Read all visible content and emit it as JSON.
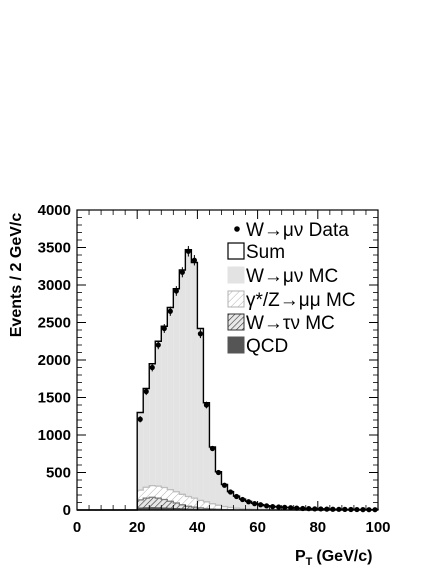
{
  "chart_data": {
    "type": "bar",
    "xlabel": "P",
    "xlabel_sub": "T",
    "xlabel_units": "(GeV/c)",
    "ylabel": "Events / 2 GeV/c",
    "xlim": [
      0,
      100
    ],
    "ylim": [
      0,
      4000
    ],
    "xticks": [
      0,
      20,
      40,
      60,
      80,
      100
    ],
    "yticks": [
      0,
      500,
      1000,
      1500,
      2000,
      2500,
      3000,
      3500,
      4000
    ],
    "bin_width": 2,
    "bin_edges_start": 20,
    "legend_placement": "top-right",
    "legend": [
      {
        "key": "data",
        "label": "W→μν Data"
      },
      {
        "key": "sum",
        "label": "Sum"
      },
      {
        "key": "wmunu",
        "label": "W→μν MC"
      },
      {
        "key": "zmumu",
        "label": "γ*/Z→μμ MC"
      },
      {
        "key": "wtaunu",
        "label": "W→τν MC"
      },
      {
        "key": "qcd",
        "label": "QCD"
      }
    ],
    "colors": {
      "wmunu": "#e3e3e3",
      "zmumu": "#bdbdbd",
      "wtaunu": "#7a7a7a",
      "qcd": "#555555",
      "sum": "#000000",
      "data": "#000000"
    },
    "bins": [
      20,
      22,
      24,
      26,
      28,
      30,
      32,
      34,
      36,
      38,
      40,
      42,
      44,
      46,
      48,
      50,
      52,
      54,
      56,
      58,
      60,
      62,
      64,
      66,
      68,
      70,
      72,
      74,
      76,
      78,
      80,
      82,
      84,
      86,
      88,
      90,
      92,
      94,
      96,
      98
    ],
    "series": [
      {
        "key": "data",
        "values": [
          1210,
          1580,
          1900,
          2200,
          2420,
          2650,
          2920,
          3170,
          3450,
          3330,
          2350,
          1400,
          820,
          500,
          330,
          240,
          180,
          140,
          110,
          85,
          70,
          55,
          45,
          40,
          35,
          30,
          25,
          20,
          18,
          15,
          14,
          12,
          10,
          9,
          8,
          7,
          6,
          5,
          4,
          4
        ]
      },
      {
        "key": "sum",
        "values": [
          1300,
          1620,
          1950,
          2250,
          2450,
          2700,
          2950,
          3200,
          3470,
          3300,
          2420,
          1430,
          840,
          510,
          340,
          245,
          185,
          145,
          115,
          88,
          72,
          57,
          47,
          41,
          36,
          31,
          26,
          21,
          19,
          16,
          15,
          12,
          10,
          9,
          8,
          7,
          6,
          5,
          4,
          4
        ]
      },
      {
        "key": "zmumu",
        "values": [
          130,
          145,
          155,
          160,
          160,
          155,
          150,
          140,
          130,
          120,
          100,
          90,
          70,
          55,
          40,
          30,
          22,
          16,
          12,
          8,
          6,
          4,
          3,
          2,
          2,
          2,
          1,
          1,
          1,
          1,
          1,
          1,
          1,
          1,
          0,
          0,
          0,
          0,
          0,
          0
        ]
      },
      {
        "key": "wtaunu",
        "values": [
          110,
          130,
          140,
          130,
          115,
          95,
          75,
          55,
          40,
          30,
          22,
          15,
          10,
          7,
          5,
          3,
          2,
          1,
          1,
          1,
          0,
          0,
          0,
          0,
          0,
          0,
          0,
          0,
          0,
          0,
          0,
          0,
          0,
          0,
          0,
          0,
          0,
          0,
          0,
          0
        ]
      },
      {
        "key": "qcd",
        "values": [
          25,
          28,
          30,
          28,
          25,
          22,
          18,
          14,
          10,
          8,
          6,
          4,
          3,
          2,
          1,
          1,
          0,
          0,
          0,
          0,
          0,
          0,
          0,
          0,
          0,
          0,
          0,
          0,
          0,
          0,
          0,
          0,
          0,
          0,
          0,
          0,
          0,
          0,
          0,
          0
        ]
      }
    ]
  }
}
